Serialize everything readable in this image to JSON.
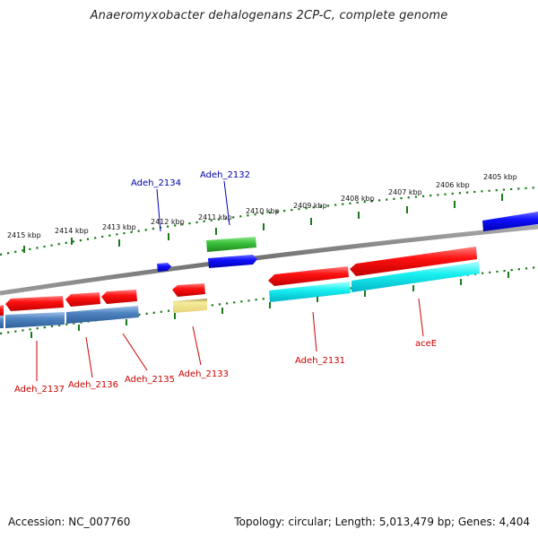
{
  "title": "Anaeromyxobacter dehalogenans 2CP-C, complete genome",
  "footer": {
    "accession": "Accession: NC_007760",
    "summary": "Topology: circular; Length: 5,013,479 bp; Genes: 4,404"
  },
  "scale_labels": [
    "2415 kbp",
    "2414 kbp",
    "2413 kbp",
    "2412 kbp",
    "2411 kbp",
    "2410 kbp",
    "2409 kbp",
    "2408 kbp",
    "2407 kbp",
    "2406 kbp",
    "2405 kbp"
  ],
  "upper_gene_labels": [
    "Adeh_2134",
    "Adeh_2132"
  ],
  "lower_gene_labels": [
    "Adeh_2137",
    "Adeh_2136",
    "Adeh_2135",
    "Adeh_2133",
    "Adeh_2131",
    "aceE"
  ],
  "colors": {
    "forward_cds": "#e60000",
    "reverse_cds": "#0000e6",
    "label_upper": "#0000aa",
    "label_lower": "#cc0000",
    "scale_green": "#1a7a1a",
    "backbone": "#808080"
  }
}
